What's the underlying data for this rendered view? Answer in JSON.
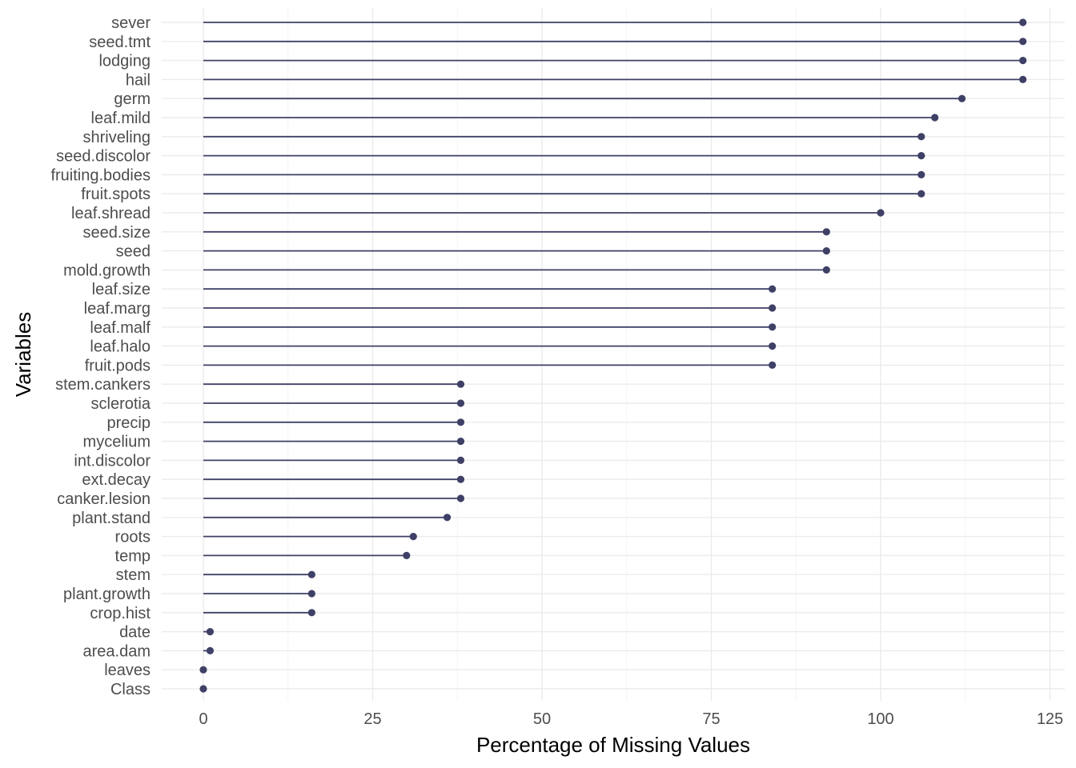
{
  "chart_data": {
    "type": "lollipop",
    "xlabel": "Percentage of Missing Values",
    "ylabel": "Variables",
    "xlim": [
      -12,
      127
    ],
    "xticks": [
      0,
      25,
      50,
      75,
      100,
      125
    ],
    "grid": true,
    "color": "#3f4066",
    "categories": [
      "sever",
      "seed.tmt",
      "lodging",
      "hail",
      "germ",
      "leaf.mild",
      "shriveling",
      "seed.discolor",
      "fruiting.bodies",
      "fruit.spots",
      "leaf.shread",
      "seed.size",
      "seed",
      "mold.growth",
      "leaf.size",
      "leaf.marg",
      "leaf.malf",
      "leaf.halo",
      "fruit.pods",
      "stem.cankers",
      "sclerotia",
      "precip",
      "mycelium",
      "int.discolor",
      "ext.decay",
      "canker.lesion",
      "plant.stand",
      "roots",
      "temp",
      "stem",
      "plant.growth",
      "crop.hist",
      "date",
      "area.dam",
      "leaves",
      "Class"
    ],
    "values": [
      121,
      121,
      121,
      121,
      112,
      108,
      106,
      106,
      106,
      106,
      100,
      92,
      92,
      92,
      84,
      84,
      84,
      84,
      84,
      38,
      38,
      38,
      38,
      38,
      38,
      38,
      36,
      31,
      30,
      16,
      16,
      16,
      1,
      1,
      0,
      0
    ]
  }
}
